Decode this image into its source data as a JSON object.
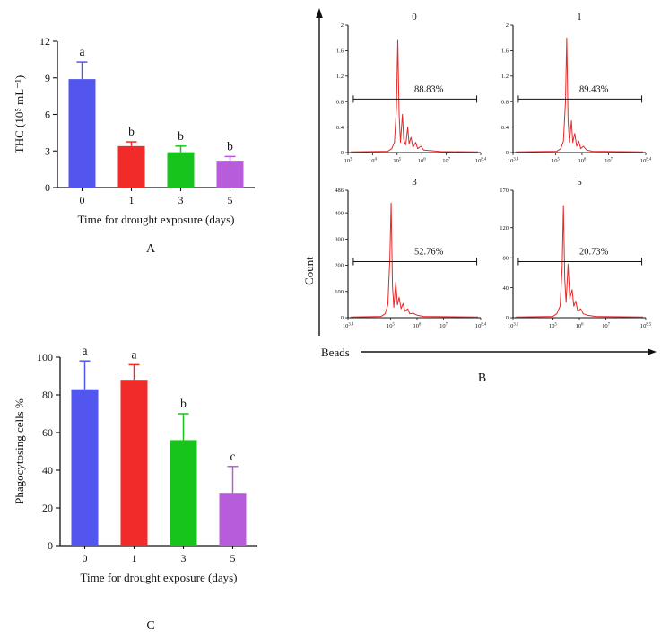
{
  "panel_letters": {
    "a": "A",
    "b": "B",
    "c": "C"
  },
  "chart_data": [
    {
      "id": "panel_a",
      "type": "bar",
      "categories": [
        "0",
        "1",
        "3",
        "5"
      ],
      "values": [
        8.9,
        3.4,
        2.9,
        2.2
      ],
      "errors": [
        1.4,
        0.35,
        0.5,
        0.35
      ],
      "sig_letters": [
        "a",
        "b",
        "b",
        "b"
      ],
      "bar_colors": [
        "#5356ee",
        "#f12a2a",
        "#17c41c",
        "#b75cdb"
      ],
      "ylabel": "THC (10⁵ mL⁻¹)",
      "xlabel": "Time for drought exposure (days)",
      "ylim": [
        0,
        12
      ],
      "yticks": [
        0,
        3,
        6,
        9,
        12
      ],
      "grid": false,
      "legend": "none"
    },
    {
      "id": "panel_b",
      "type": "histogram-grid",
      "xlabel": "Beads",
      "ylabel": "Count",
      "curve_color": "#e62828",
      "subplots": [
        {
          "title": "0",
          "percent": "88.83%",
          "gate": {
            "y": 0.42,
            "x1": 0.04,
            "x2": 0.97,
            "label_x": 0.5
          },
          "yticks": [
            {
              "label": "0",
              "pos": 0
            },
            {
              "label": "0.4",
              "pos": 0.2
            },
            {
              "label": "0.8",
              "pos": 0.4
            },
            {
              "label": "1.2",
              "pos": 0.6
            },
            {
              "label": "1.6",
              "pos": 0.8
            },
            {
              "label": "2",
              "pos": 1
            }
          ],
          "xticks": [
            {
              "label": "10^3",
              "pos": 0
            },
            {
              "label": "10^4",
              "pos": 0.185
            },
            {
              "label": "10^5",
              "pos": 0.37
            },
            {
              "label": "10^6",
              "pos": 0.556
            },
            {
              "label": "10^7",
              "pos": 0.741
            },
            {
              "label": "10^8.4",
              "pos": 1
            }
          ],
          "curve": [
            [
              0.02,
              0.005
            ],
            [
              0.3,
              0.01
            ],
            [
              0.33,
              0.03
            ],
            [
              0.35,
              0.08
            ],
            [
              0.365,
              0.35
            ],
            [
              0.375,
              0.88
            ],
            [
              0.385,
              0.3
            ],
            [
              0.395,
              0.08
            ],
            [
              0.41,
              0.3
            ],
            [
              0.42,
              0.1
            ],
            [
              0.435,
              0.06
            ],
            [
              0.45,
              0.2
            ],
            [
              0.46,
              0.07
            ],
            [
              0.475,
              0.12
            ],
            [
              0.49,
              0.04
            ],
            [
              0.51,
              0.08
            ],
            [
              0.525,
              0.03
            ],
            [
              0.55,
              0.05
            ],
            [
              0.57,
              0.02
            ],
            [
              0.62,
              0.015
            ],
            [
              0.7,
              0.008
            ],
            [
              0.98,
              0.005
            ]
          ]
        },
        {
          "title": "1",
          "percent": "89.43%",
          "gate": {
            "y": 0.42,
            "x1": 0.04,
            "x2": 0.97,
            "label_x": 0.5
          },
          "yticks": [
            {
              "label": "0",
              "pos": 0
            },
            {
              "label": "0.4",
              "pos": 0.2
            },
            {
              "label": "0.8",
              "pos": 0.4
            },
            {
              "label": "1.2",
              "pos": 0.6
            },
            {
              "label": "1.6",
              "pos": 0.8
            },
            {
              "label": "2",
              "pos": 1
            }
          ],
          "xticks": [
            {
              "label": "10^3.4",
              "pos": 0
            },
            {
              "label": "10^5",
              "pos": 0.32
            },
            {
              "label": "10^6",
              "pos": 0.52
            },
            {
              "label": "10^7",
              "pos": 0.72
            },
            {
              "label": "10^8.4",
              "pos": 1
            }
          ],
          "curve": [
            [
              0.02,
              0.005
            ],
            [
              0.33,
              0.01
            ],
            [
              0.36,
              0.03
            ],
            [
              0.38,
              0.09
            ],
            [
              0.395,
              0.4
            ],
            [
              0.405,
              0.9
            ],
            [
              0.415,
              0.25
            ],
            [
              0.425,
              0.08
            ],
            [
              0.44,
              0.25
            ],
            [
              0.45,
              0.08
            ],
            [
              0.465,
              0.15
            ],
            [
              0.48,
              0.05
            ],
            [
              0.495,
              0.09
            ],
            [
              0.51,
              0.03
            ],
            [
              0.53,
              0.05
            ],
            [
              0.555,
              0.02
            ],
            [
              0.6,
              0.01
            ],
            [
              0.98,
              0.005
            ]
          ]
        },
        {
          "title": "3",
          "percent": "52.76%",
          "gate": {
            "y": 0.44,
            "x1": 0.04,
            "x2": 0.97,
            "label_x": 0.5
          },
          "yticks": [
            {
              "label": "0",
              "pos": 0
            },
            {
              "label": "100",
              "pos": 0.206
            },
            {
              "label": "200",
              "pos": 0.412
            },
            {
              "label": "300",
              "pos": 0.617
            },
            {
              "label": "400",
              "pos": 0.823
            },
            {
              "label": "486",
              "pos": 1
            }
          ],
          "xticks": [
            {
              "label": "10^3.4",
              "pos": 0
            },
            {
              "label": "10^5",
              "pos": 0.32
            },
            {
              "label": "10^6",
              "pos": 0.52
            },
            {
              "label": "10^7",
              "pos": 0.72
            },
            {
              "label": "10^8.4",
              "pos": 1
            }
          ],
          "curve": [
            [
              0.02,
              0.005
            ],
            [
              0.25,
              0.01
            ],
            [
              0.28,
              0.03
            ],
            [
              0.3,
              0.1
            ],
            [
              0.315,
              0.45
            ],
            [
              0.325,
              0.9
            ],
            [
              0.335,
              0.25
            ],
            [
              0.345,
              0.08
            ],
            [
              0.36,
              0.28
            ],
            [
              0.372,
              0.1
            ],
            [
              0.385,
              0.16
            ],
            [
              0.4,
              0.07
            ],
            [
              0.415,
              0.11
            ],
            [
              0.43,
              0.05
            ],
            [
              0.45,
              0.07
            ],
            [
              0.465,
              0.03
            ],
            [
              0.49,
              0.035
            ],
            [
              0.52,
              0.02
            ],
            [
              0.57,
              0.01
            ],
            [
              0.98,
              0.005
            ]
          ]
        },
        {
          "title": "5",
          "percent": "20.73%",
          "gate": {
            "y": 0.44,
            "x1": 0.04,
            "x2": 0.97,
            "label_x": 0.5
          },
          "yticks": [
            {
              "label": "0",
              "pos": 0
            },
            {
              "label": "40",
              "pos": 0.235
            },
            {
              "label": "80",
              "pos": 0.47
            },
            {
              "label": "120",
              "pos": 0.706
            },
            {
              "label": "170",
              "pos": 1
            }
          ],
          "xticks": [
            {
              "label": "10^3.5",
              "pos": 0
            },
            {
              "label": "10^5",
              "pos": 0.3
            },
            {
              "label": "10^6",
              "pos": 0.5
            },
            {
              "label": "10^7",
              "pos": 0.7
            },
            {
              "label": "10^8.5",
              "pos": 1
            }
          ],
          "curve": [
            [
              0.02,
              0.005
            ],
            [
              0.3,
              0.01
            ],
            [
              0.33,
              0.03
            ],
            [
              0.355,
              0.09
            ],
            [
              0.37,
              0.4
            ],
            [
              0.38,
              0.88
            ],
            [
              0.39,
              0.3
            ],
            [
              0.4,
              0.12
            ],
            [
              0.415,
              0.42
            ],
            [
              0.428,
              0.15
            ],
            [
              0.445,
              0.22
            ],
            [
              0.458,
              0.09
            ],
            [
              0.472,
              0.13
            ],
            [
              0.488,
              0.05
            ],
            [
              0.51,
              0.07
            ],
            [
              0.53,
              0.03
            ],
            [
              0.56,
              0.02
            ],
            [
              0.62,
              0.01
            ],
            [
              0.98,
              0.005
            ]
          ]
        }
      ]
    },
    {
      "id": "panel_c",
      "type": "bar",
      "categories": [
        "0",
        "1",
        "3",
        "5"
      ],
      "values": [
        83,
        88,
        56,
        28
      ],
      "errors": [
        15,
        8,
        14,
        14
      ],
      "sig_letters": [
        "a",
        "a",
        "b",
        "c"
      ],
      "bar_colors": [
        "#5356ee",
        "#f12a2a",
        "#17c41c",
        "#b75cdb"
      ],
      "ylabel": "Phagocytosing cells %",
      "xlabel": "Time for drought exposure (days)",
      "ylim": [
        0,
        100
      ],
      "yticks": [
        0,
        20,
        40,
        60,
        80,
        100
      ],
      "grid": false,
      "legend": "none"
    }
  ]
}
